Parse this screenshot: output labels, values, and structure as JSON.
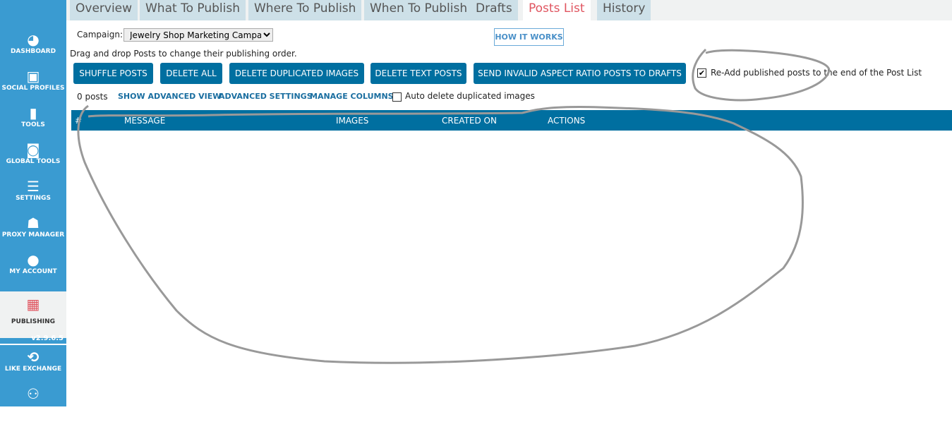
{
  "sidebar": {
    "items": [
      {
        "label": "DASHBOARD",
        "icon": "gauge-icon"
      },
      {
        "label": "SOCIAL PROFILES",
        "icon": "profile-card-icon"
      },
      {
        "label": "TOOLS",
        "icon": "clipboard-icon"
      },
      {
        "label": "GLOBAL TOOLS",
        "icon": "global-clipboard-icon"
      },
      {
        "label": "SETTINGS",
        "icon": "sliders-icon"
      },
      {
        "label": "PROXY MANAGER",
        "icon": "spy-icon"
      },
      {
        "label": "MY ACCOUNT",
        "icon": "user-icon"
      },
      {
        "label": "PUBLISHING",
        "icon": "calendar-icon"
      },
      {
        "label": "LIKE EXCHANGE",
        "icon": "like-exchange-icon"
      }
    ],
    "version": "v2.9.6.5"
  },
  "tabs": [
    "Overview",
    "What To Publish",
    "Where To Publish",
    "When To Publish",
    "Drafts",
    "Posts List",
    "History"
  ],
  "active_tab": "Posts List",
  "campaign": {
    "label": "Campaign:",
    "value": "Jewelry Shop Marketing Campaign"
  },
  "how_it_works": "HOW IT WORKS",
  "hint": "Drag and drop Posts to change their publishing order.",
  "buttons": [
    "SHUFFLE POSTS",
    "DELETE ALL",
    "DELETE DUPLICATED IMAGES",
    "DELETE TEXT POSTS",
    "SEND INVALID ASPECT RATIO POSTS TO DRAFTS"
  ],
  "readd": {
    "label": "Re-Add published posts to the end of the Post List",
    "checked": true
  },
  "post_count": "0 posts",
  "links": [
    "SHOW ADVANCED VIEW",
    "ADVANCED SETTINGS",
    "MANAGE COLUMNS"
  ],
  "auto_delete": {
    "label": "Auto delete duplicated images",
    "checked": false
  },
  "table": {
    "columns": [
      "#",
      "MESSAGE",
      "IMAGES",
      "CREATED ON",
      "ACTIONS"
    ],
    "rows": []
  },
  "colors": {
    "sidebar": "#3a9bd1",
    "primary": "#006fa0",
    "active_tab": "#e05560"
  }
}
